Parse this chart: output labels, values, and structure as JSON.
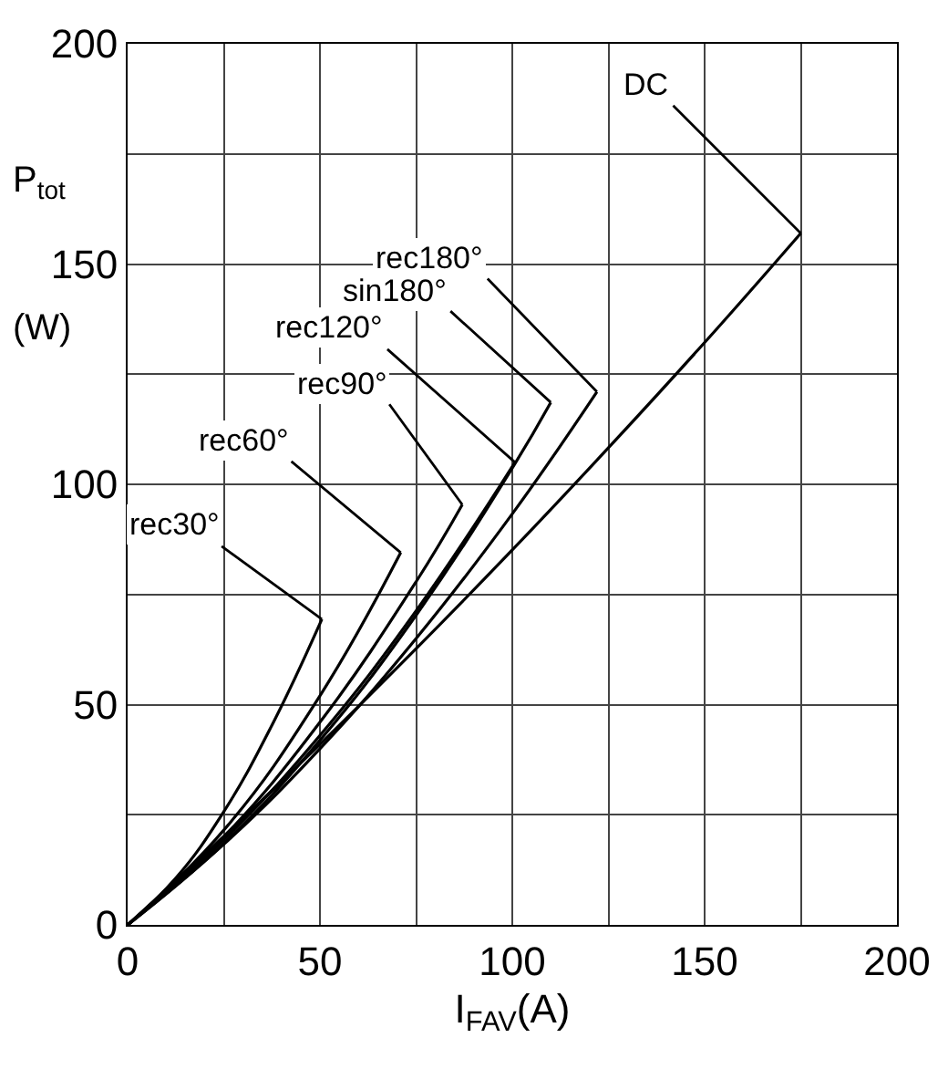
{
  "chart_data": {
    "type": "line",
    "xlabel": "I$_{FAV}$(A)",
    "ylabel": "P$_{tot}$ (W)",
    "xlim": [
      0,
      200
    ],
    "ylim": [
      0,
      200
    ],
    "xticks": [
      0,
      {
        "value": 25,
        "label": null
      },
      50,
      {
        "value": 75,
        "label": null
      },
      100,
      {
        "value": 125,
        "label": null
      },
      150,
      {
        "value": 175,
        "label": null
      },
      200
    ],
    "yticks": [
      0,
      {
        "value": 25,
        "label": null
      },
      50,
      {
        "value": 75,
        "label": null
      },
      100,
      {
        "value": 125,
        "label": null
      },
      150,
      {
        "value": 175,
        "label": null
      },
      200
    ],
    "grid": true,
    "legend": false,
    "marker": "none",
    "line_style": "solid",
    "series": [
      {
        "name": "rec30°",
        "color": "#000000",
        "x": [
          0,
          12.5,
          25,
          37.5,
          50.5
        ],
        "values": [
          0,
          10.6,
          25.7,
          45.3,
          69.4
        ]
      },
      {
        "name": "rec60°",
        "color": "#000000",
        "x": [
          0,
          25,
          50,
          71
        ],
        "values": [
          0,
          21.5,
          52,
          84.5
        ]
      },
      {
        "name": "rec90°",
        "color": "#000000",
        "x": [
          0,
          25,
          50,
          75,
          87
        ],
        "values": [
          0,
          20,
          46,
          77.9,
          95.4
        ]
      },
      {
        "name": "rec120°",
        "color": "#000000",
        "x": [
          0,
          25,
          50,
          75,
          100.7
        ],
        "values": [
          0,
          19.3,
          43,
          71.3,
          105
        ]
      },
      {
        "name": "sin180°",
        "color": "#000000",
        "x": [
          0,
          25,
          50,
          75,
          100,
          110
        ],
        "values": [
          0,
          18.5,
          41.9,
          70.3,
          103.7,
          118.6
        ]
      },
      {
        "name": "rec180°",
        "color": "#000000",
        "x": [
          0,
          25,
          50,
          75,
          100,
          122
        ],
        "values": [
          0,
          18.3,
          40,
          65,
          93.3,
          121
        ]
      },
      {
        "name": "DC",
        "color": "#000000",
        "x": [
          0,
          25,
          50,
          75,
          100,
          125,
          150,
          175
        ],
        "values": [
          0,
          20.1,
          41,
          62.7,
          85.1,
          108.3,
          132.2,
          157
        ]
      }
    ]
  }
}
